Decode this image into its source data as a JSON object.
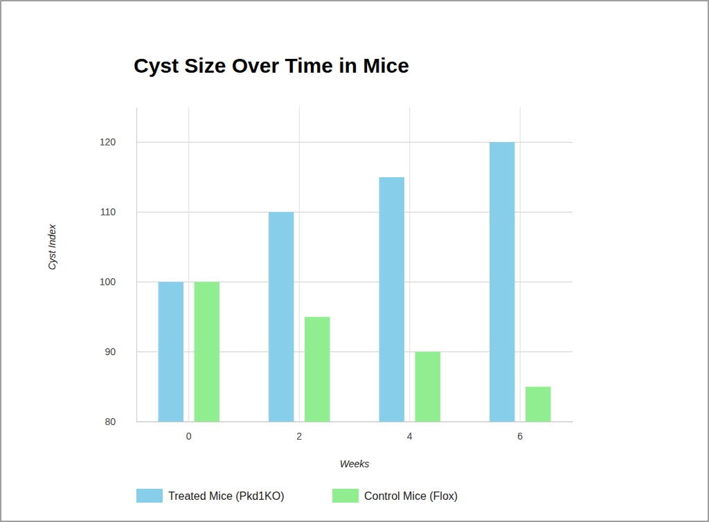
{
  "chart_data": {
    "type": "bar",
    "title": "Cyst Size Over Time in Mice",
    "x_label": "Weeks",
    "y_label": "Cyst Index",
    "categories": [
      "0",
      "2",
      "4",
      "6"
    ],
    "series": [
      {
        "name": "Treated Mice (Pkd1KO)",
        "color": "#87ceeb",
        "values": [
          100,
          110,
          115,
          120
        ]
      },
      {
        "name": "Control Mice (Flox)",
        "color": "#90ee90",
        "values": [
          100,
          95,
          90,
          85
        ]
      }
    ],
    "ylim": [
      80,
      125
    ],
    "yticks": [
      80,
      90,
      100,
      110,
      120
    ],
    "grid": true,
    "legend": "bottom"
  }
}
